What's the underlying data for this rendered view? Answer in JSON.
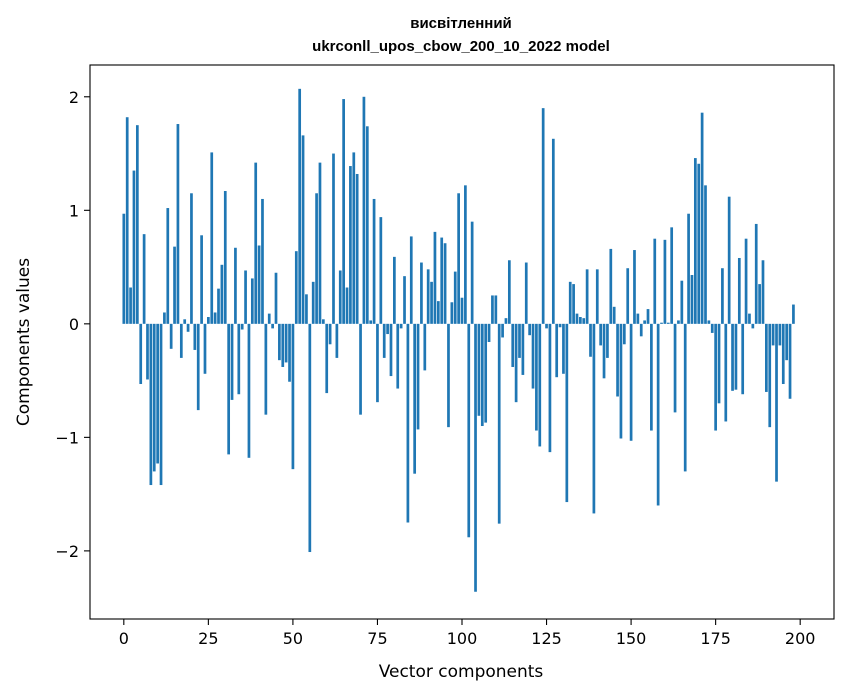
{
  "chart_data": {
    "type": "bar",
    "title_lines": [
      "висвітленний",
      "ukrconll_upos_cbow_200_10_2022 model"
    ],
    "xlabel": "Vector components",
    "ylabel": "Components values",
    "xlim": [
      -10,
      210
    ],
    "ylim": [
      -2.6,
      2.28
    ],
    "x_ticks": [
      0,
      25,
      50,
      75,
      100,
      125,
      150,
      175,
      200
    ],
    "y_ticks": [
      -2,
      -1,
      0,
      1,
      2
    ],
    "y_tick_labels": [
      "−2",
      "−1",
      "0",
      "1",
      "2"
    ],
    "bar_color": "#1f77b4",
    "grid": false,
    "values": [
      0.97,
      1.82,
      0.32,
      1.35,
      1.75,
      -0.53,
      0.79,
      -0.49,
      -1.42,
      -1.3,
      -1.23,
      -1.42,
      0.1,
      1.02,
      -0.22,
      0.68,
      1.76,
      -0.3,
      0.04,
      -0.07,
      1.15,
      -0.23,
      -0.76,
      0.78,
      -0.44,
      0.06,
      1.51,
      0.1,
      0.31,
      0.52,
      1.17,
      -1.15,
      -0.67,
      0.67,
      -0.62,
      -0.05,
      0.47,
      -1.18,
      0.4,
      1.42,
      0.69,
      1.1,
      -0.8,
      0.09,
      -0.04,
      0.45,
      -0.32,
      -0.38,
      -0.34,
      -0.51,
      -1.28,
      0.64,
      2.07,
      1.66,
      0.26,
      -2.01,
      0.37,
      1.15,
      1.42,
      0.04,
      -0.61,
      -0.18,
      1.5,
      -0.3,
      0.47,
      1.98,
      0.32,
      1.39,
      1.51,
      1.32,
      -0.8,
      2.0,
      1.74,
      0.03,
      1.1,
      -0.69,
      0.94,
      -0.3,
      -0.09,
      -0.46,
      0.59,
      -0.57,
      -0.04,
      0.42,
      -1.75,
      0.77,
      -1.32,
      -0.93,
      0.54,
      -0.41,
      0.48,
      0.37,
      0.81,
      0.2,
      0.76,
      0.71,
      -0.91,
      0.19,
      0.46,
      1.15,
      0.23,
      1.22,
      -1.88,
      0.9,
      -2.36,
      -0.81,
      -0.9,
      -0.87,
      -0.16,
      0.25,
      0.25,
      -1.76,
      -0.12,
      0.05,
      0.56,
      -0.38,
      -0.69,
      -0.3,
      -0.45,
      0.54,
      -0.1,
      -0.57,
      -0.94,
      -1.08,
      1.9,
      -0.04,
      -1.13,
      1.63,
      -0.47,
      -0.03,
      -0.44,
      -1.57,
      0.37,
      0.35,
      0.09,
      0.06,
      0.05,
      0.48,
      -0.29,
      -1.67,
      0.48,
      -0.19,
      -0.48,
      -0.3,
      0.66,
      0.15,
      -0.64,
      -1.01,
      -0.18,
      0.49,
      -1.03,
      0.65,
      0.09,
      -0.11,
      0.03,
      0.13,
      -0.94,
      0.75,
      -1.6,
      0.01,
      0.74,
      0.01,
      0.85,
      -0.78,
      0.03,
      0.38,
      -1.3,
      0.97,
      0.43,
      1.46,
      1.41,
      1.86,
      1.22,
      0.03,
      -0.08,
      -0.94,
      -0.7,
      0.49,
      -0.86,
      1.12,
      -0.59,
      -0.58,
      0.58,
      -0.62,
      0.75,
      0.09,
      -0.04,
      0.88,
      0.35,
      0.56,
      -0.6,
      -0.91,
      -0.19,
      -1.39,
      -0.19,
      -0.53,
      -0.32,
      -0.66,
      0.17
    ]
  }
}
